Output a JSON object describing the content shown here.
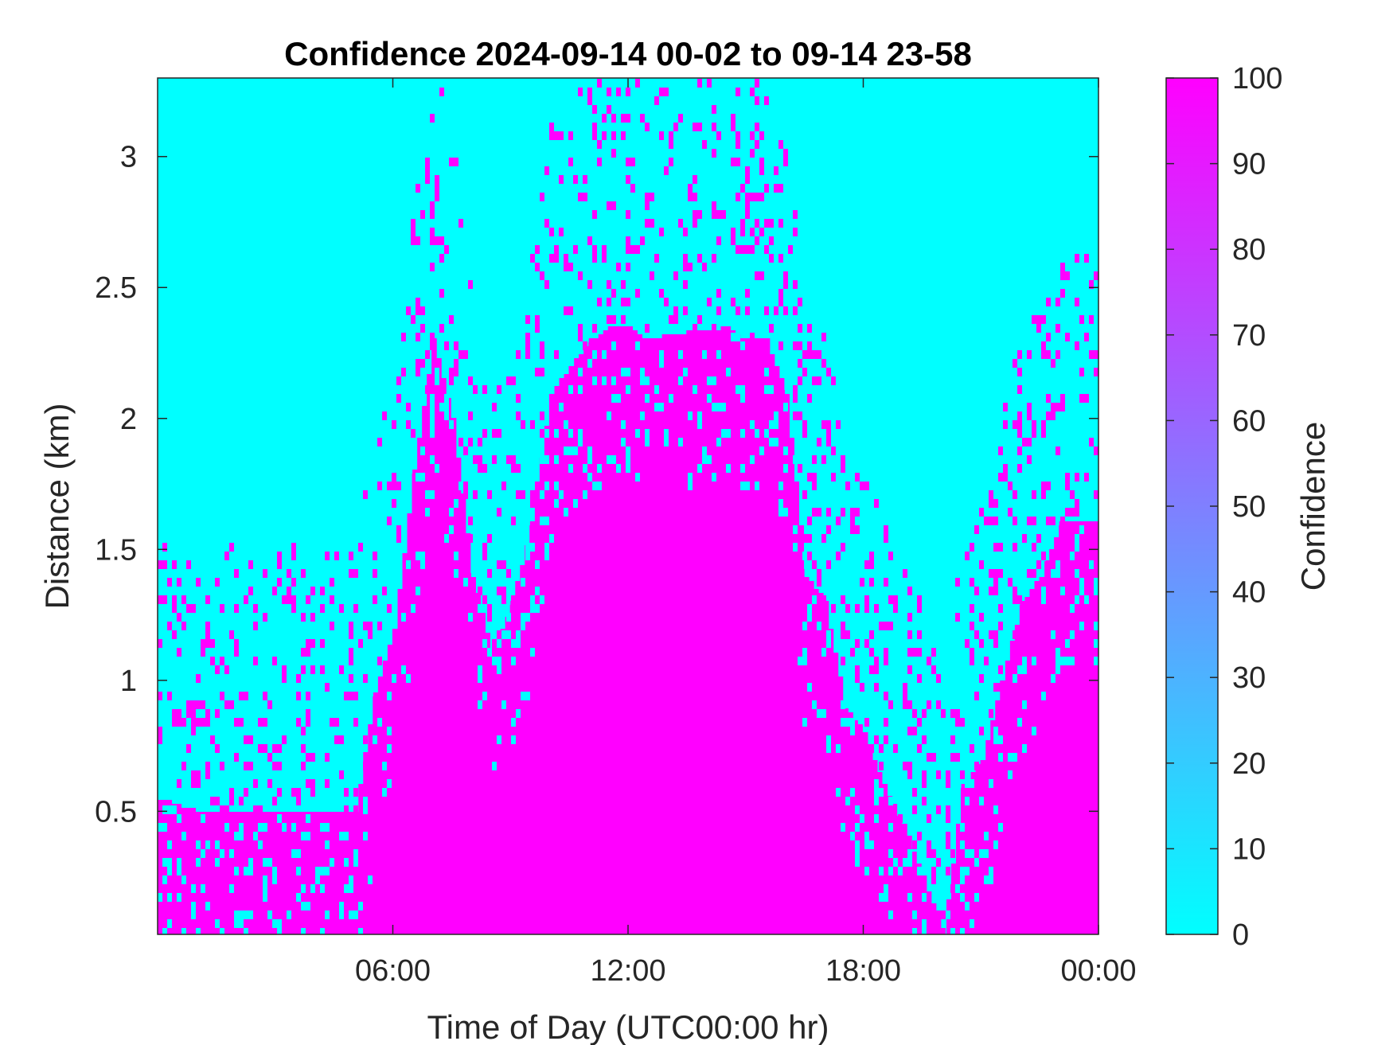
{
  "chart_data": {
    "type": "heatmap",
    "title": "Confidence 2024-09-14 00-02 to 09-14 23-58",
    "xlabel": "Time of Day (UTC00:00 hr)",
    "ylabel": "Distance (km)",
    "x_unit": "hours",
    "xlim": [
      0,
      24
    ],
    "ylim": [
      0.03,
      3.3
    ],
    "x_ticks": [
      {
        "value": 6,
        "label": "06:00"
      },
      {
        "value": 12,
        "label": "12:00"
      },
      {
        "value": 18,
        "label": "18:00"
      },
      {
        "value": 24,
        "label": "00:00"
      }
    ],
    "y_ticks": [
      {
        "value": 0.5,
        "label": "0.5"
      },
      {
        "value": 1,
        "label": "1"
      },
      {
        "value": 1.5,
        "label": "1.5"
      },
      {
        "value": 2,
        "label": "2"
      },
      {
        "value": 2.5,
        "label": "2.5"
      },
      {
        "value": 3,
        "label": "3"
      }
    ],
    "colorbar": {
      "label": "Confidence",
      "range": [
        0,
        100
      ],
      "ticks": [
        "0",
        "10",
        "20",
        "30",
        "40",
        "50",
        "60",
        "70",
        "80",
        "90",
        "100"
      ],
      "color_low": "#00ffff",
      "color_high": "#ff00ff"
    },
    "high_confidence_top_profile": {
      "description_values_in": "km",
      "time_hours": [
        0,
        1,
        2,
        3,
        4,
        5,
        5.5,
        6,
        6.5,
        7,
        7.5,
        8,
        8.5,
        9,
        9.5,
        10,
        10.5,
        11,
        11.5,
        12,
        12.5,
        13,
        13.5,
        14,
        14.5,
        15,
        15.5,
        16,
        16.5,
        17,
        17.5,
        18,
        18.5,
        19,
        19.5,
        20,
        20.5,
        21,
        21.5,
        22,
        22.5,
        23,
        23.5,
        24
      ],
      "top_km": [
        0.55,
        0.5,
        0.5,
        0.5,
        0.5,
        0.5,
        0.95,
        1.2,
        1.8,
        2.3,
        2.0,
        1.4,
        1.1,
        1.3,
        1.6,
        2.1,
        2.2,
        2.3,
        2.35,
        2.35,
        2.3,
        2.32,
        2.33,
        2.33,
        2.35,
        2.3,
        2.3,
        2.1,
        1.4,
        1.3,
        0.9,
        0.8,
        0.6,
        0.45,
        0.25,
        0.03,
        0.6,
        0.7,
        1.0,
        1.3,
        1.4,
        1.6,
        1.6,
        1.6
      ]
    }
  }
}
